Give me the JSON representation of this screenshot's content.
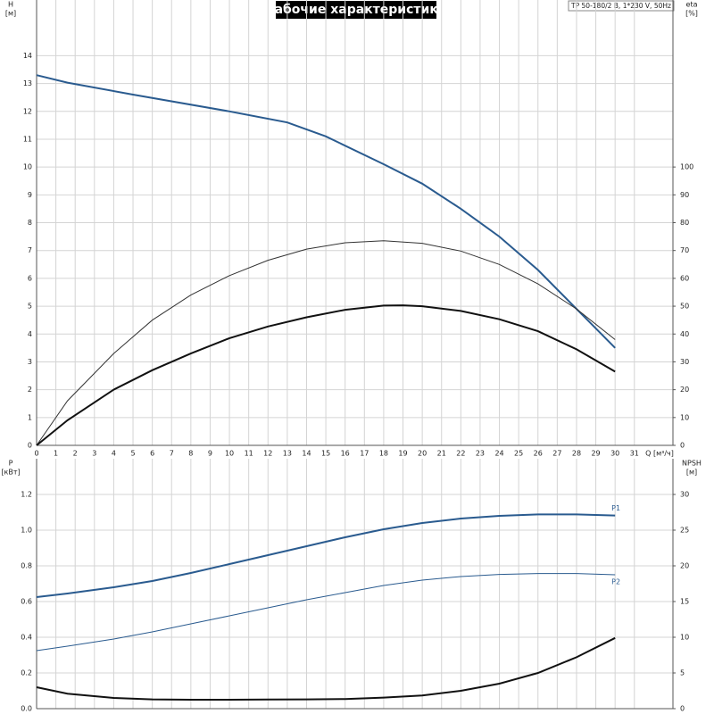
{
  "header": {
    "title": "Рабочие характеристики",
    "pump": "TP 50-180/2 B, 1*230 V, 50Hz"
  },
  "chart_data": [
    {
      "type": "line",
      "y_label": "H",
      "y_unit": "[м]",
      "y2_label": "eta",
      "y2_unit": "[%]",
      "x_label": "Q [м³/ч]",
      "xlim": [
        0,
        33
      ],
      "xticks": [
        0,
        1,
        2,
        3,
        4,
        5,
        6,
        7,
        8,
        9,
        10,
        11,
        12,
        13,
        14,
        15,
        16,
        17,
        18,
        19,
        20,
        21,
        22,
        23,
        24,
        25,
        26,
        27,
        28,
        29,
        30,
        31
      ],
      "xtick_labels": true,
      "ylim": [
        0,
        16
      ],
      "yticks": [
        0,
        1,
        2,
        3,
        4,
        5,
        6,
        7,
        8,
        9,
        10,
        11,
        12,
        13,
        14
      ],
      "y2lim": [
        0,
        160
      ],
      "y2ticks": [
        0,
        10,
        20,
        30,
        40,
        50,
        60,
        70,
        80,
        90,
        100
      ],
      "grid": true,
      "series": [
        {
          "color": "#2a5b8f",
          "style": "thick",
          "x": [
            0,
            1.6,
            5,
            10,
            13,
            15,
            18,
            20,
            22,
            24,
            26,
            28,
            30
          ],
          "values": [
            13.3,
            13.03,
            12.6,
            12.0,
            11.6,
            11.1,
            10.1,
            9.4,
            8.5,
            7.5,
            6.3,
            4.9,
            3.5
          ]
        },
        {
          "color": "#333333",
          "style": "thin",
          "axis": "y2",
          "x": [
            0,
            1.6,
            4,
            6,
            8,
            10,
            12,
            14,
            16,
            18,
            20,
            22,
            24,
            26,
            28,
            30
          ],
          "values": [
            0,
            16,
            33,
            45,
            54,
            61,
            66.5,
            70.5,
            72.8,
            73.5,
            72.6,
            69.8,
            65,
            58,
            49,
            38
          ]
        },
        {
          "color": "#111111",
          "style": "thick",
          "axis": "y2",
          "x": [
            0,
            1.6,
            4,
            6,
            8,
            10,
            12,
            14,
            16,
            18,
            19,
            20,
            22,
            24,
            26,
            28,
            30
          ],
          "values": [
            0,
            9,
            20,
            27,
            33,
            38.5,
            42.7,
            46,
            48.7,
            50.2,
            50.3,
            50,
            48.3,
            45.3,
            41,
            34.5,
            26.5
          ]
        }
      ]
    },
    {
      "type": "line",
      "y_label": "P",
      "y_unit": "[кВт]",
      "y2_label": "NPSH",
      "y2_unit": "[м]",
      "xlim": [
        0,
        33
      ],
      "xticks": [
        0,
        1,
        2,
        3,
        4,
        5,
        6,
        7,
        8,
        9,
        10,
        11,
        12,
        13,
        14,
        15,
        16,
        17,
        18,
        19,
        20,
        21,
        22,
        23,
        24,
        25,
        26,
        27,
        28,
        29,
        30,
        31
      ],
      "xtick_labels": false,
      "ylim": [
        0,
        1.4
      ],
      "yticks": [
        {
          "value": 0,
          "label": "0.0"
        },
        0.2,
        0.4,
        0.6,
        0.8,
        {
          "value": 1,
          "label": "1.0"
        },
        1.2
      ],
      "y2lim": [
        0,
        35
      ],
      "y2ticks": [
        0,
        5,
        10,
        15,
        20,
        25,
        30
      ],
      "grid": true,
      "series": [
        {
          "name": "P1",
          "color": "#2a5b8f",
          "style": "thick",
          "x": [
            0,
            1.6,
            4,
            6,
            8,
            10,
            12,
            14,
            16,
            18,
            20,
            22,
            24,
            26,
            28,
            30
          ],
          "values": [
            0.625,
            0.645,
            0.68,
            0.715,
            0.76,
            0.81,
            0.86,
            0.91,
            0.96,
            1.005,
            1.04,
            1.065,
            1.08,
            1.088,
            1.088,
            1.082
          ]
        },
        {
          "name": "P2",
          "color": "#2a5b8f",
          "style": "thin",
          "x": [
            0,
            1.6,
            4,
            6,
            8,
            10,
            12,
            14,
            16,
            18,
            20,
            22,
            24,
            26,
            28,
            30
          ],
          "values": [
            0.325,
            0.35,
            0.39,
            0.43,
            0.475,
            0.52,
            0.565,
            0.61,
            0.65,
            0.69,
            0.72,
            0.74,
            0.752,
            0.757,
            0.757,
            0.75
          ]
        },
        {
          "color": "#111111",
          "style": "thick",
          "axis": "y2",
          "x": [
            0,
            1.6,
            4,
            6,
            8,
            10,
            12,
            14,
            16,
            18,
            20,
            22,
            24,
            26,
            28,
            30
          ],
          "values": [
            3,
            2.1,
            1.5,
            1.3,
            1.25,
            1.25,
            1.27,
            1.3,
            1.35,
            1.55,
            1.85,
            2.5,
            3.5,
            5,
            7.2,
            9.9
          ]
        }
      ]
    }
  ]
}
